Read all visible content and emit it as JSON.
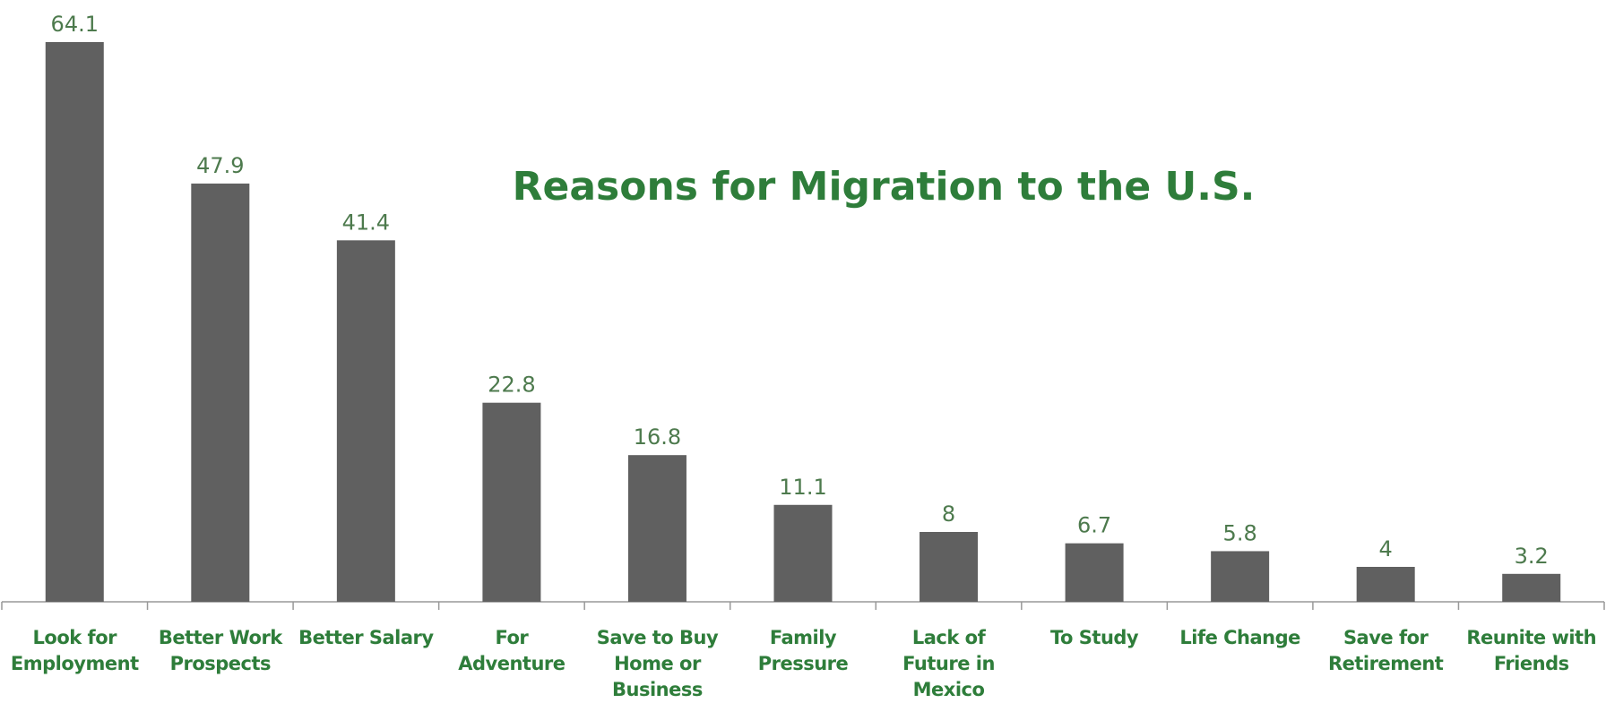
{
  "chart_data": {
    "type": "bar",
    "title": "Reasons for Migration to the U.S.",
    "categories": [
      "Look for Employment",
      "Better Work Prospects",
      "Better Salary",
      "For Adventure",
      "Save to Buy Home or Business",
      "Family Pressure",
      "Lack of Future in Mexico",
      "To Study",
      "Life Change",
      "Save for Retirement",
      "Reunite with Friends"
    ],
    "values": [
      64.1,
      47.9,
      41.4,
      22.8,
      16.8,
      11.1,
      8,
      6.7,
      5.8,
      4,
      3.2
    ],
    "color": "#606060"
  }
}
